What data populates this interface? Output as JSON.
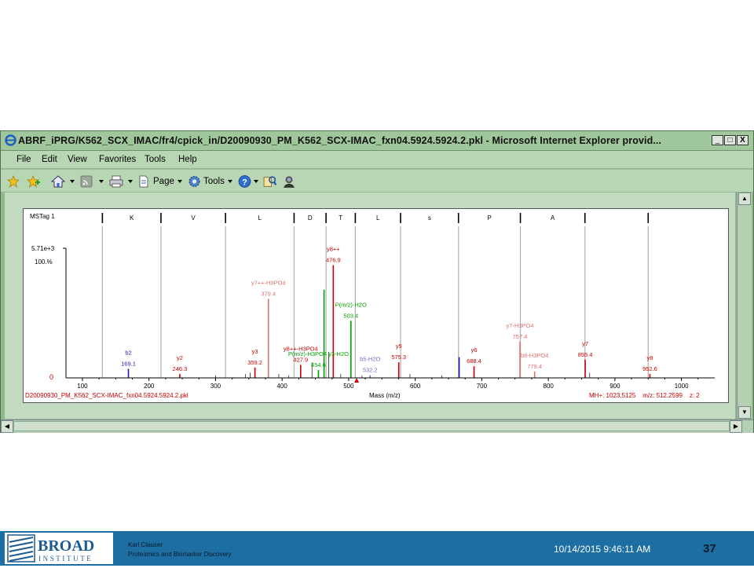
{
  "window": {
    "title": "ABRF_iPRG/K562_SCX_IMAC/fr4/cpick_in/D20090930_PM_K562_SCX-IMAC_fxn04.5924.5924.2.pkl - Microsoft Internet Explorer provid...",
    "controls": {
      "minimize": "_",
      "maximize": "□",
      "close": "X"
    }
  },
  "menu": {
    "file": "File",
    "edit": "Edit",
    "view": "View",
    "favorites": "Favorites",
    "tools": "Tools",
    "help": "Help"
  },
  "toolbar": {
    "page_label": "Page",
    "tools_label": "Tools",
    "icons": [
      "favorites-star-icon",
      "add-favorite-icon",
      "home-icon",
      "feeds-icon",
      "print-icon",
      "page-icon",
      "tools-gear-icon",
      "help-icon",
      "research-icon",
      "messenger-icon"
    ]
  },
  "spectrum": {
    "tag": "MSTag 1",
    "sequence": [
      "K",
      "V",
      "L",
      "D",
      "T",
      "L",
      "s",
      "P",
      "A"
    ],
    "intensity_max_label": "5.71e+3",
    "percent_label": "100.%",
    "zero_label": "0",
    "x_axis_label": "Mass (m/z)",
    "x_ticks": [
      "100",
      "200",
      "300",
      "400",
      "500",
      "600",
      "700",
      "800",
      "900",
      "1000"
    ],
    "filename": "D20090930_PM_K562_SCX-IMAC_fxn04.5924.5924.2.pkl",
    "precursor_info": "MH+: 1023.5125    m/z: 512.2599    z: 2",
    "colors": {
      "y_ion": "#cc0000",
      "y_loss": "#e07070",
      "b_ion": "#1a1aaa",
      "b_loss": "#7070cc",
      "phos": "#00a000",
      "unassigned": "#555555"
    }
  },
  "chart_data": {
    "type": "bar",
    "title": "MSTag 1",
    "xlabel": "Mass (m/z)",
    "ylabel": "",
    "xlim": [
      80,
      1050
    ],
    "ylim": [
      0,
      100
    ],
    "peaks": [
      {
        "mz": 169.1,
        "intensity": 7,
        "label": "b2",
        "value_label": "169.1",
        "kind": "b_ion"
      },
      {
        "mz": 246.3,
        "intensity": 3,
        "label": "y2",
        "value_label": "246.3",
        "kind": "y_ion"
      },
      {
        "mz": 359.2,
        "intensity": 8,
        "label": "y3",
        "value_label": "359.2",
        "kind": "y_ion"
      },
      {
        "mz": 379.4,
        "intensity": 61,
        "label": "y7++-H3PO4",
        "value_label": "379.4",
        "kind": "y_loss"
      },
      {
        "mz": 427.9,
        "intensity": 10,
        "label": "y8++-H3PO4",
        "value_label": "427.9",
        "kind": "y_ion"
      },
      {
        "mz": 454.6,
        "intensity": 6,
        "label": "P(m/z)-H3PO4 y3-H2O",
        "value_label": "454.6",
        "kind": "phos"
      },
      {
        "mz": 463.0,
        "intensity": 68,
        "label": "",
        "value_label": "",
        "kind": "phos"
      },
      {
        "mz": 476.9,
        "intensity": 87,
        "label": "y8++",
        "value_label": "476.9",
        "kind": "y_ion"
      },
      {
        "mz": 503.4,
        "intensity": 44,
        "label": "P(m/z)-H2O",
        "value_label": "503.4",
        "kind": "phos"
      },
      {
        "mz": 532.2,
        "intensity": 2,
        "label": "b5-H2O",
        "value_label": "532.2",
        "kind": "b_loss"
      },
      {
        "mz": 575.3,
        "intensity": 12,
        "label": "y5",
        "value_label": "575.3",
        "kind": "y_ion"
      },
      {
        "mz": 666.0,
        "intensity": 16,
        "label": "",
        "value_label": "",
        "kind": "b_ion"
      },
      {
        "mz": 688.4,
        "intensity": 9,
        "label": "y6",
        "value_label": "688.4",
        "kind": "y_ion"
      },
      {
        "mz": 757.4,
        "intensity": 28,
        "label": "y7-H3PO4",
        "value_label": "757.4",
        "kind": "y_loss"
      },
      {
        "mz": 779.4,
        "intensity": 5,
        "label": "b8-H3PO4",
        "value_label": "779.4",
        "kind": "y_loss"
      },
      {
        "mz": 855.4,
        "intensity": 14,
        "label": "y7",
        "value_label": "855.4",
        "kind": "y_ion"
      },
      {
        "mz": 952.6,
        "intensity": 3,
        "label": "y8",
        "value_label": "952.6",
        "kind": "y_ion"
      }
    ],
    "sequence_marker_mz": [
      130,
      218,
      315,
      418,
      466,
      510,
      578,
      665,
      758,
      855,
      950
    ],
    "unassigned_peaks": [
      {
        "mz": 300,
        "intensity": 2
      },
      {
        "mz": 345,
        "intensity": 3
      },
      {
        "mz": 352,
        "intensity": 4
      },
      {
        "mz": 395,
        "intensity": 3
      },
      {
        "mz": 410,
        "intensity": 2
      },
      {
        "mz": 445,
        "intensity": 12
      },
      {
        "mz": 470,
        "intensity": 20
      },
      {
        "mz": 488,
        "intensity": 3
      },
      {
        "mz": 520,
        "intensity": 2
      },
      {
        "mz": 592,
        "intensity": 3
      },
      {
        "mz": 640,
        "intensity": 2
      },
      {
        "mz": 862,
        "intensity": 4
      }
    ]
  },
  "footer": {
    "logo_top": "BROAD",
    "logo_bottom": "INSTITUTE",
    "presenter_name": "Karl Clauser",
    "presenter_dept": "Proteomics and Biomarker Discovery",
    "datetime": "10/14/2015 9:46:11 AM",
    "page_number": "37"
  }
}
